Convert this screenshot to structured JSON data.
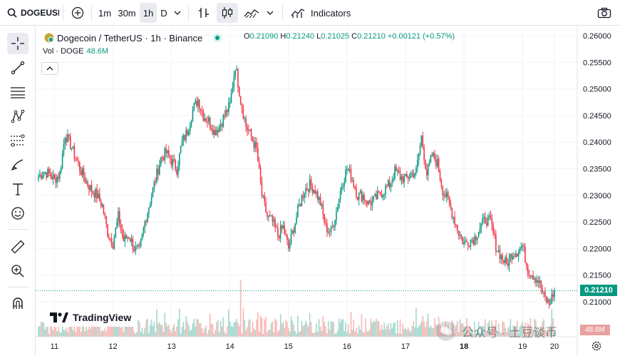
{
  "toolbar": {
    "symbol": "DOGEUSDT",
    "intervals": [
      "1m",
      "30m",
      "1h",
      "D"
    ],
    "active_interval": "1h",
    "indicators_label": "Indicators",
    "icons": [
      "search-icon",
      "plus-circle-icon",
      "chevron-down-icon",
      "bar-type-icon",
      "candles-icon",
      "area-chart-icon",
      "indicators-icon",
      "camera-icon"
    ]
  },
  "left_tools": [
    "crosshair-icon",
    "trend-line-icon",
    "horizontal-lines-icon",
    "pattern-icon",
    "fib-icon",
    "brush-icon",
    "text-icon",
    "emoji-icon",
    "ruler-icon",
    "zoom-in-icon",
    "magnet-icon"
  ],
  "legend": {
    "title": "Dogecoin / TetherUS · 1h · Binance",
    "o_label": "O",
    "o": "0.21090",
    "h_label": "H",
    "h": "0.21240",
    "l_label": "L",
    "l": "0.21025",
    "c_label": "C",
    "c": "0.21210",
    "change": "+0.00121 (+0.57%)",
    "vol_label": "Vol · DOGE",
    "vol_value": "48.6M"
  },
  "price_axis": {
    "ticks": [
      "0.26000",
      "0.25500",
      "0.25000",
      "0.24500",
      "0.24000",
      "0.23500",
      "0.23000",
      "0.22500",
      "0.22000",
      "0.21500",
      "0.21000"
    ],
    "current_price": "0.21210",
    "volume_label": "48.6M"
  },
  "time_axis": {
    "ticks": [
      "11",
      "12",
      "13",
      "14",
      "15",
      "16",
      "17",
      "18",
      "19",
      "20"
    ]
  },
  "branding": {
    "logo_text": "TradingView",
    "watermark": "公众号 · 土豆谈币"
  },
  "colors": {
    "up": "#089981",
    "down": "#f23645",
    "up_vol": "#8fd1c4",
    "down_vol": "#f7a9a7",
    "grid": "#f0f3fa",
    "accent": "#2962ff"
  },
  "chart_data": {
    "type": "candlestick",
    "symbol": "DOGEUSDT",
    "interval": "1h",
    "ylim": [
      0.2085,
      0.2612
    ],
    "day_ticks": [
      "11",
      "12",
      "13",
      "14",
      "15",
      "16",
      "17",
      "18",
      "19",
      "20"
    ],
    "close_path": [
      [
        0.2335,
        0.2345,
        0.234,
        0.233,
        0.234,
        0.2415,
        0.2395,
        0.237,
        0.2345,
        0.2325,
        0.231
      ],
      [
        0.23,
        0.228,
        0.223,
        0.221,
        0.226,
        0.2215,
        0.2225,
        0.22,
        0.2195,
        0.225,
        0.229
      ],
      [
        0.233,
        0.237,
        0.238,
        0.2365,
        0.235,
        0.24,
        0.242,
        0.246,
        0.248,
        0.245,
        0.244
      ],
      [
        0.242,
        0.243,
        0.245,
        0.247,
        0.2545,
        0.248,
        0.243,
        0.241,
        0.2385,
        0.23,
        0.226
      ],
      [
        0.225,
        0.2225,
        0.224,
        0.22,
        0.224,
        0.228,
        0.231,
        0.232,
        0.231,
        0.2285,
        0.224
      ],
      [
        0.223,
        0.227,
        0.232,
        0.235,
        0.233,
        0.23,
        0.23,
        0.2285,
        0.229,
        0.23,
        0.231
      ],
      [
        0.232,
        0.2345,
        0.2335,
        0.233,
        0.234,
        0.2345,
        0.241,
        0.234,
        0.2375,
        0.236,
        0.231
      ],
      [
        0.229,
        0.226,
        0.223,
        0.221,
        0.2215,
        0.222,
        0.224,
        0.2255,
        0.225,
        0.2205,
        0.2185
      ],
      [
        0.217,
        0.219,
        0.2195,
        0.2205,
        0.216,
        0.215,
        0.214,
        0.211,
        0.2095,
        0.2121
      ]
    ]
  }
}
